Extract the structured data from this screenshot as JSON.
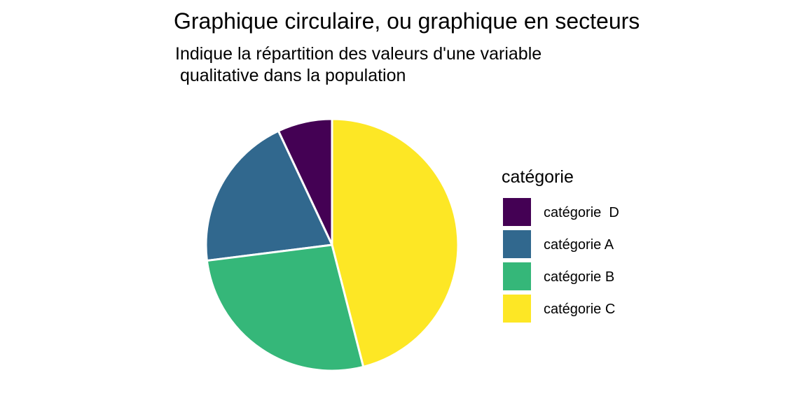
{
  "chart_data": {
    "type": "pie",
    "title": "Graphique circulaire, ou graphique en secteurs",
    "subtitle_lines": [
      "Indique la répartition des valeurs d'une variable",
      " qualitative dans la population"
    ],
    "legend_title": "catégorie",
    "legend_position": "right",
    "slices": [
      {
        "label": "catégorie  D",
        "value": 7,
        "color": "#440154"
      },
      {
        "label": "catégorie A",
        "value": 20,
        "color": "#31688E"
      },
      {
        "label": "catégorie B",
        "value": 27,
        "color": "#35B779"
      },
      {
        "label": "catégorie C",
        "value": 46,
        "color": "#FDE725"
      }
    ]
  }
}
